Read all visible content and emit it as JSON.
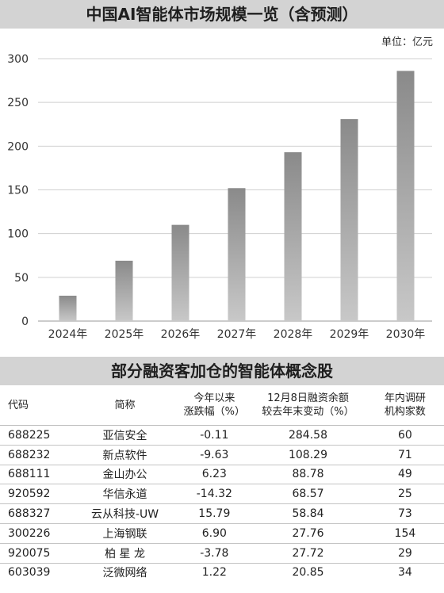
{
  "chart_title": "中国AI智能体市场规模一览（含预测）",
  "unit_label": "单位：亿元",
  "chart_data": {
    "type": "bar",
    "title": "中国AI智能体市场规模一览（含预测）",
    "categories": [
      "2024年",
      "2025年",
      "2026年",
      "2027年",
      "2028年",
      "2029年",
      "2030年"
    ],
    "values": [
      29,
      69,
      110,
      152,
      193,
      231,
      286
    ],
    "ylim": [
      0,
      300
    ],
    "yticks": [
      0,
      50,
      100,
      150,
      200,
      250,
      300
    ],
    "ytick_labels": [
      "0",
      "50",
      "100",
      "150",
      "200",
      "250",
      "300"
    ],
    "grid": true,
    "bar_color": "#8f8f8f"
  },
  "table": {
    "title": "部分融资客加仓的智能体概念股",
    "headers": {
      "code": "代码",
      "name": "简称",
      "change_1": "今年以来",
      "change_2": "涨跌幅（%）",
      "financing_1": "12月8日融资余额",
      "financing_2": "较去年末变动（%）",
      "institutions_1": "年内调研",
      "institutions_2": "机构家数"
    },
    "rows": [
      {
        "code": "688225",
        "name": "亚信安全",
        "change": "-0.11",
        "financing": "284.58",
        "institutions": "60"
      },
      {
        "code": "688232",
        "name": "新点软件",
        "change": "-9.63",
        "financing": "108.29",
        "institutions": "71"
      },
      {
        "code": "688111",
        "name": "金山办公",
        "change": "6.23",
        "financing": "88.78",
        "institutions": "49"
      },
      {
        "code": "920592",
        "name": "华信永道",
        "change": "-14.32",
        "financing": "68.57",
        "institutions": "25"
      },
      {
        "code": "688327",
        "name": "云从科技-UW",
        "change": "15.79",
        "financing": "58.84",
        "institutions": "73"
      },
      {
        "code": "300226",
        "name": "上海钢联",
        "change": "6.90",
        "financing": "27.76",
        "institutions": "154"
      },
      {
        "code": "920075",
        "name": "柏 星 龙",
        "change": "-3.78",
        "financing": "27.72",
        "institutions": "29"
      },
      {
        "code": "603039",
        "name": "泛微网络",
        "change": "1.22",
        "financing": "20.85",
        "institutions": "34"
      }
    ]
  }
}
